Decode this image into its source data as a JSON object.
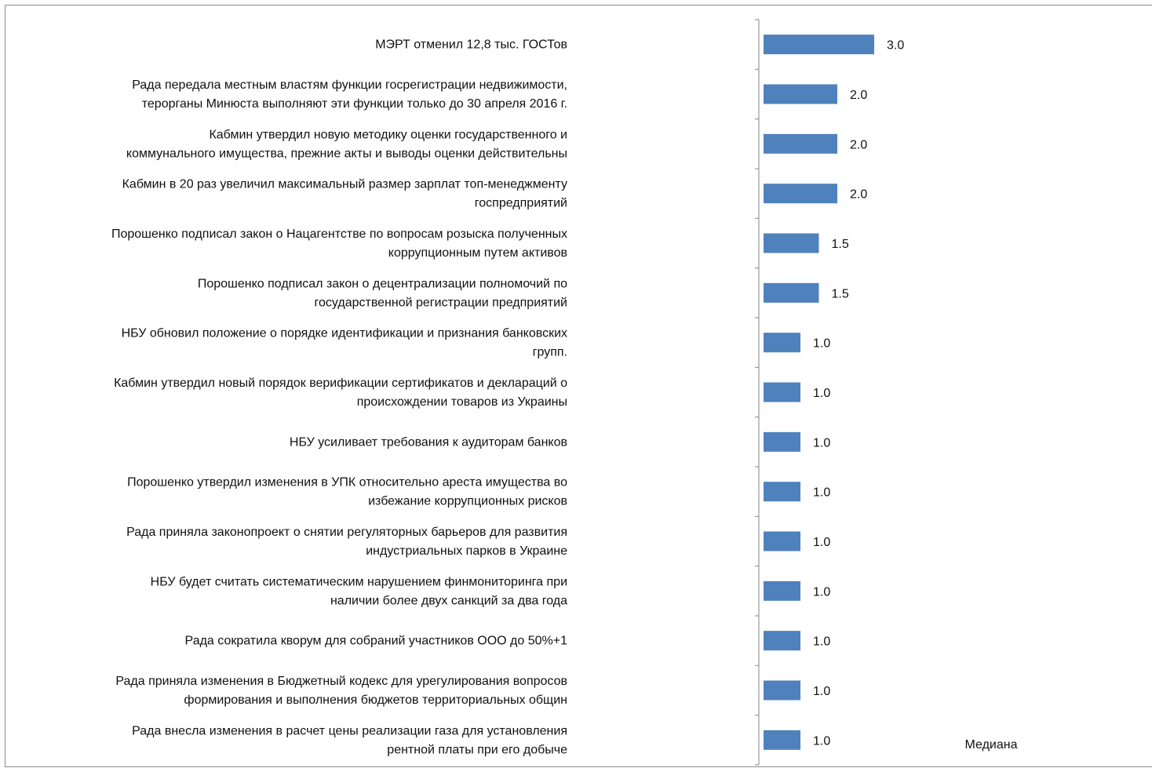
{
  "chart_data": {
    "type": "bar",
    "orientation": "horizontal",
    "categories": [
      "МЭРТ отменил 12,8 тыс. ГОСТов",
      "Рада передала местным властям функции госрегистрации недвижимости, терорганы Минюста выполняют эти функции только до 30 апреля 2016 г.",
      "Кабмин утвердил новую методику оценки государственного и коммунального имущества, прежние акты и выводы оценки действительны",
      "Кабмин в 20 раз увеличил максимальный размер зарплат топ-менеджменту госпредприятий",
      "Порошенко подписал закон о Нацагентстве по вопросам розыска полученных коррупционным путем активов",
      "Порошенко подписал закон о децентрализации полномочий по государственной регистрации предприятий",
      "НБУ обновил положение о порядке идентификации и признания банковских групп.",
      "Кабмин утвердил новый порядок верификации сертификатов и деклараций о происхождении товаров из Украины",
      "НБУ усиливает требования к аудиторам банков",
      "Порошенко утвердил изменения в УПК относительно ареста имущества во избежание коррупционных рисков",
      "Рада приняла законопроект о снятии регуляторных барьеров для развития индустриальных парков в Украине",
      "НБУ будет считать систематическим нарушением финмониторинга при наличии более двух санкций за два года",
      "Рада сократила кворум для собраний участников ООО до 50%+1",
      "Рада приняла изменения в Бюджетный кодекс для урегулирования вопросов формирования и выполнения бюджетов территориальных общин",
      "Рада внесла изменения в расчет цены реализации газа для установления рентной платы при его добыче"
    ],
    "category_lines": [
      [
        "МЭРТ отменил 12,8 тыс. ГОСТов"
      ],
      [
        "Рада передала местным властям функции госрегистрации недвижимости,",
        "терорганы Минюста выполняют эти функции только до 30 апреля 2016 г."
      ],
      [
        "Кабмин утвердил новую методику оценки государственного и",
        "коммунального имущества, прежние акты и выводы оценки действительны"
      ],
      [
        "Кабмин в 20 раз увеличил максимальный размер зарплат топ-менеджменту",
        "госпредприятий"
      ],
      [
        "Порошенко подписал закон о Нацагентстве по вопросам розыска полученных",
        "коррупционным путем активов"
      ],
      [
        "Порошенко подписал закон о децентрализации полномочий по",
        "государственной регистрации предприятий"
      ],
      [
        "НБУ обновил положение о порядке идентификации и признания банковских",
        "групп."
      ],
      [
        "Кабмин утвердил новый порядок верификации сертификатов и деклараций о",
        "происхождении товаров из Украины"
      ],
      [
        "НБУ усиливает требования к аудиторам банков"
      ],
      [
        "Порошенко утвердил изменения в УПК относительно ареста имущества во",
        "избежание коррупционных рисков"
      ],
      [
        "Рада приняла законопроект о снятии регуляторных барьеров для развития",
        "индустриальных парков в Украине"
      ],
      [
        "НБУ будет считать систематическим нарушением финмониторинга при",
        "наличии более двух санкций за два года"
      ],
      [
        "Рада сократила кворум для собраний участников ООО до 50%+1"
      ],
      [
        "Рада приняла изменения в Бюджетный кодекс для урегулирования вопросов",
        "формирования и выполнения бюджетов территориальных общин"
      ],
      [
        "Рада внесла изменения в расчет цены реализации газа для установления",
        "рентной платы при его добыче"
      ]
    ],
    "series": [
      {
        "name": "Медиана",
        "values": [
          3.0,
          2.0,
          2.0,
          2.0,
          1.5,
          1.5,
          1.0,
          1.0,
          1.0,
          1.0,
          1.0,
          1.0,
          1.0,
          1.0,
          1.0
        ],
        "value_labels": [
          "3.0",
          "2.0",
          "2.0",
          "2.0",
          "1.5",
          "1.5",
          "1.0",
          "1.0",
          "1.0",
          "1.0",
          "1.0",
          "1.0",
          "1.0",
          "1.0",
          "1.0"
        ]
      }
    ],
    "bar_color": "#4f81bd",
    "axis_color": "#868686",
    "xlim": [
      0,
      10
    ],
    "grid": false,
    "legend_position": "bottom-right"
  }
}
